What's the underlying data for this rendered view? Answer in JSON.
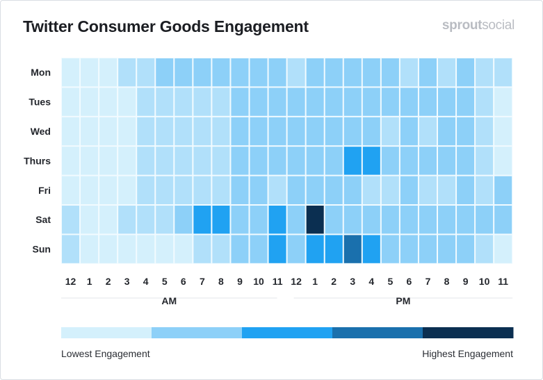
{
  "title": "Twitter Consumer Goods Engagement",
  "brand": {
    "part1": "sprout",
    "part2": "social"
  },
  "chart_data": {
    "type": "heatmap",
    "title": "Twitter Consumer Goods Engagement",
    "rows": [
      "Mon",
      "Tues",
      "Wed",
      "Thurs",
      "Fri",
      "Sat",
      "Sun"
    ],
    "columns": [
      "12",
      "1",
      "2",
      "3",
      "4",
      "5",
      "6",
      "7",
      "8",
      "9",
      "10",
      "11",
      "12",
      "1",
      "2",
      "3",
      "4",
      "5",
      "6",
      "7",
      "8",
      "9",
      "10",
      "11"
    ],
    "periods": [
      "AM",
      "PM"
    ],
    "scale": {
      "min": 0,
      "max": 4,
      "colors": [
        "#d4f0fc",
        "#8dd0f8",
        "#20a2f2",
        "#1a70ad",
        "#0b2f51"
      ]
    },
    "values": [
      [
        0,
        0,
        0,
        0.5,
        0.5,
        1,
        1,
        1,
        1,
        1,
        1,
        1,
        0.5,
        1,
        1,
        1,
        1,
        1,
        0.5,
        1,
        0.5,
        1,
        0.5,
        0.5
      ],
      [
        0,
        0,
        0,
        0,
        0.5,
        0.5,
        0.5,
        0.5,
        0.5,
        1,
        1,
        1,
        1,
        1,
        1,
        1,
        1,
        1,
        1,
        1,
        1,
        1,
        0.5,
        0
      ],
      [
        0,
        0,
        0,
        0,
        0.5,
        0.5,
        0.5,
        0.5,
        0.5,
        1,
        1,
        1,
        1,
        1,
        1,
        1,
        1,
        0.5,
        1,
        0.5,
        1,
        1,
        0.5,
        0
      ],
      [
        0,
        0,
        0,
        0,
        0.5,
        0.5,
        0.5,
        0.5,
        0.5,
        1,
        1,
        1,
        1,
        1,
        1,
        2,
        2,
        1,
        1,
        1,
        1,
        1,
        0.5,
        0
      ],
      [
        0,
        0,
        0,
        0,
        0.5,
        0.5,
        0.5,
        0.5,
        0.5,
        1,
        1,
        0.5,
        1,
        1,
        1,
        1,
        0.5,
        0.5,
        1,
        0.5,
        0.5,
        1,
        0.5,
        1
      ],
      [
        0.5,
        0,
        0,
        0.5,
        0.5,
        0.5,
        1,
        2,
        2,
        1,
        1,
        2,
        1,
        4,
        1,
        1,
        1,
        1,
        1,
        1,
        1,
        1,
        1,
        1
      ],
      [
        0.5,
        0,
        0,
        0,
        0,
        0,
        0,
        0.5,
        0.5,
        1,
        1,
        2,
        1,
        2,
        2,
        3,
        2,
        1,
        1,
        1,
        1,
        1,
        0.5,
        0
      ]
    ],
    "legend": {
      "low": "Lowest Engagement",
      "high": "Highest Engagement"
    }
  }
}
